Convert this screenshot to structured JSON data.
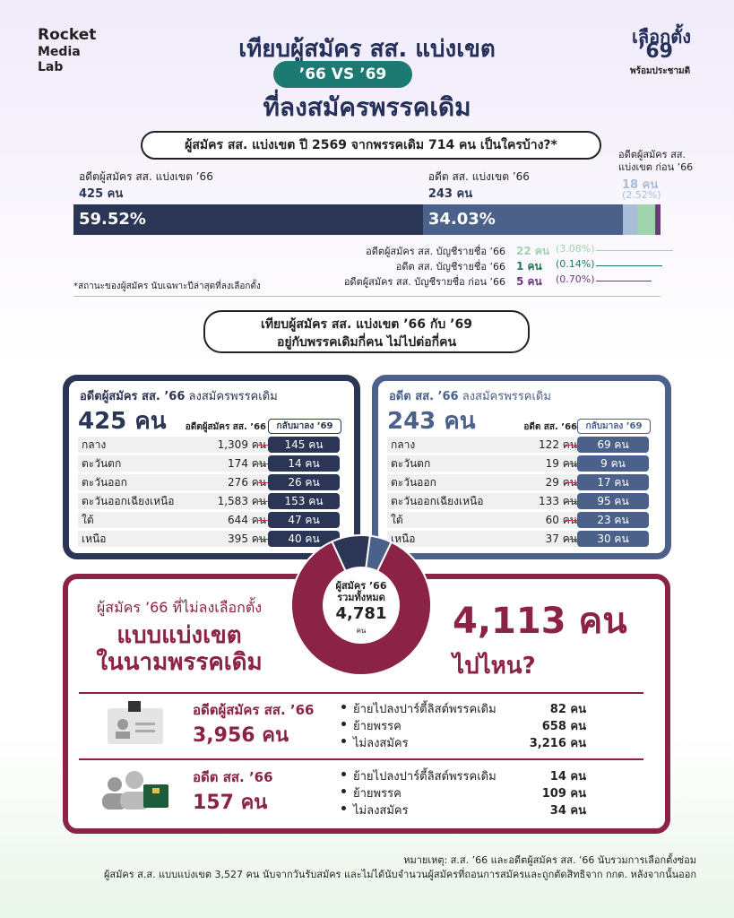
{
  "header": {
    "logo": [
      "Rocket",
      "Media",
      "Lab"
    ],
    "title_line1": "เทียบผู้สมัคร สส. แบ่งเขต",
    "pill": "’66 VS ’69",
    "title_line2": "ที่ลงสมัครพรรคเดิม",
    "badge": [
      "เลือกตั้ง",
      "’69",
      "พร้อมประชามติ"
    ]
  },
  "composition": {
    "title": "ผู้สมัคร สส. แบ่งเขต ปี 2569 จากพรรคเดิม 714 คน เป็นใครบ้าง?*",
    "segments": [
      {
        "name": "อดีตผู้สมัคร สส. แบ่งเขต ’66",
        "count": "425 คน",
        "value": 59.52,
        "value_label": "59.52%",
        "color": "#2b3656"
      },
      {
        "name": "อดีต สส. แบ่งเขต ’66",
        "count": "243 คน",
        "value": 34.03,
        "value_label": "34.03%",
        "color": "#4b6189"
      },
      {
        "name": "อดีตผู้สมัคร สส. แบ่งเขต ก่อน ’66",
        "count": "18 คน",
        "value": 2.52,
        "value_label": "(2.52%)",
        "color": "#a9bcd8"
      },
      {
        "name": "อดีตผู้สมัคร สส. บัญชีรายชื่อ ’66",
        "count": "22 คน",
        "value": 3.08,
        "value_label": "(3.08%)",
        "color": "#9fd3ad"
      },
      {
        "name": "อดีต สส. บัญชีรายชื่อ ’66",
        "count": "1 คน",
        "value": 0.14,
        "value_label": "(0.14%)",
        "color": "#1e7a55"
      },
      {
        "name": "อดีตผู้สมัคร สส. บัญชีรายชื่อ ก่อน ’66",
        "count": "5 คน",
        "value": 0.7,
        "value_label": "(0.70%)",
        "color": "#6c3a7c"
      }
    ],
    "footnote": "*สถานะของผู้สมัคร นับเฉพาะปีล่าสุดที่ลงเลือกตั้ง"
  },
  "section2": {
    "line1": "เทียบผู้สมัคร สส. แบ่งเขต ’66 กับ ’69",
    "line2": "อยู่กับพรรคเดิมกี่คน ไม่ไปต่อกี่คน"
  },
  "panels": [
    {
      "title_bold": "อดีตผู้สมัคร สส. ’66",
      "title_rest": " ลงสมัครพรรคเดิม",
      "columns": [
        "อดีตผู้สมัคร สส. ’66",
        "กลับมาลง ’69"
      ],
      "rows": [
        [
          "กลาง",
          "1,309 คน",
          "145 คน"
        ],
        [
          "ตะวันตก",
          "174 คน",
          "14 คน"
        ],
        [
          "ตะวันออก",
          "276 คน",
          "26 คน"
        ],
        [
          "ตะวันออกเฉียงเหนือ",
          "1,583 คน",
          "153 คน"
        ],
        [
          "ใต้",
          "644 คน",
          "47 คน"
        ],
        [
          "เหนือ",
          "395 คน",
          "40 คน"
        ]
      ]
    },
    {
      "title_bold": "อดีต สส. ’66",
      "title_rest": " ลงสมัครพรรคเดิม",
      "columns": [
        "อดีต สส. ’66",
        "กลับมาลง ’69"
      ],
      "rows": [
        [
          "กลาง",
          "122 คน",
          "69 คน"
        ],
        [
          "ตะวันตก",
          "19 คน",
          "9 คน"
        ],
        [
          "ตะวันออก",
          "29 คน",
          "17 คน"
        ],
        [
          "ตะวันออกเฉียงเหนือ",
          "133 คน",
          "95 คน"
        ],
        [
          "ใต้",
          "60 คน",
          "23 คน"
        ],
        [
          "เหนือ",
          "37 คน",
          "30 คน"
        ]
      ]
    }
  ],
  "donut": {
    "center": [
      "ผู้สมัคร ’66",
      "รวมทั้งหมด",
      "4,781",
      "คน"
    ],
    "values": [
      425,
      243,
      4113
    ],
    "value_labels": [
      "425 คน",
      "243 คน",
      "4,113 คน"
    ],
    "colors": [
      "#2b3656",
      "#4b6189",
      "#8a2346"
    ]
  },
  "gone": {
    "left": [
      "ผู้สมัคร ’66 ที่ไม่ลงเลือกตั้ง",
      "แบบแบ่งเขต",
      "ในนามพรรคเดิม"
    ],
    "right": "ไปไหน?",
    "groups": [
      {
        "title": "อดีตผู้สมัคร สส. ’66",
        "count": "3,956 คน",
        "items": [
          [
            "ย้ายไปลงปาร์ตี้ลิสต์พรรคเดิม",
            "82 คน"
          ],
          [
            "ย้ายพรรค",
            "658 คน"
          ],
          [
            "ไม่ลงสมัคร",
            "3,216 คน"
          ]
        ]
      },
      {
        "title": "อดีต สส. ’66",
        "count": "157 คน",
        "items": [
          [
            "ย้ายไปลงปาร์ตี้ลิสต์พรรคเดิม",
            "14 คน"
          ],
          [
            "ย้ายพรรค",
            "109 คน"
          ],
          [
            "ไม่ลงสมัคร",
            "34 คน"
          ]
        ]
      }
    ]
  },
  "notes": [
    "หมายเหตุ: ส.ส. ’66 และอดีตผู้สมัคร สส. ’66 นับรวมการเลือกตั้งซ่อม",
    "ผู้สมัคร ส.ส. แบบแบ่งเขต 3,527 คน นับจากวันรับสมัคร และไม่ได้นับจำนวนผู้สมัครที่ถอนการสมัครและถูกตัดสิทธิจาก กกต. หลังจากนั้นออก"
  ]
}
